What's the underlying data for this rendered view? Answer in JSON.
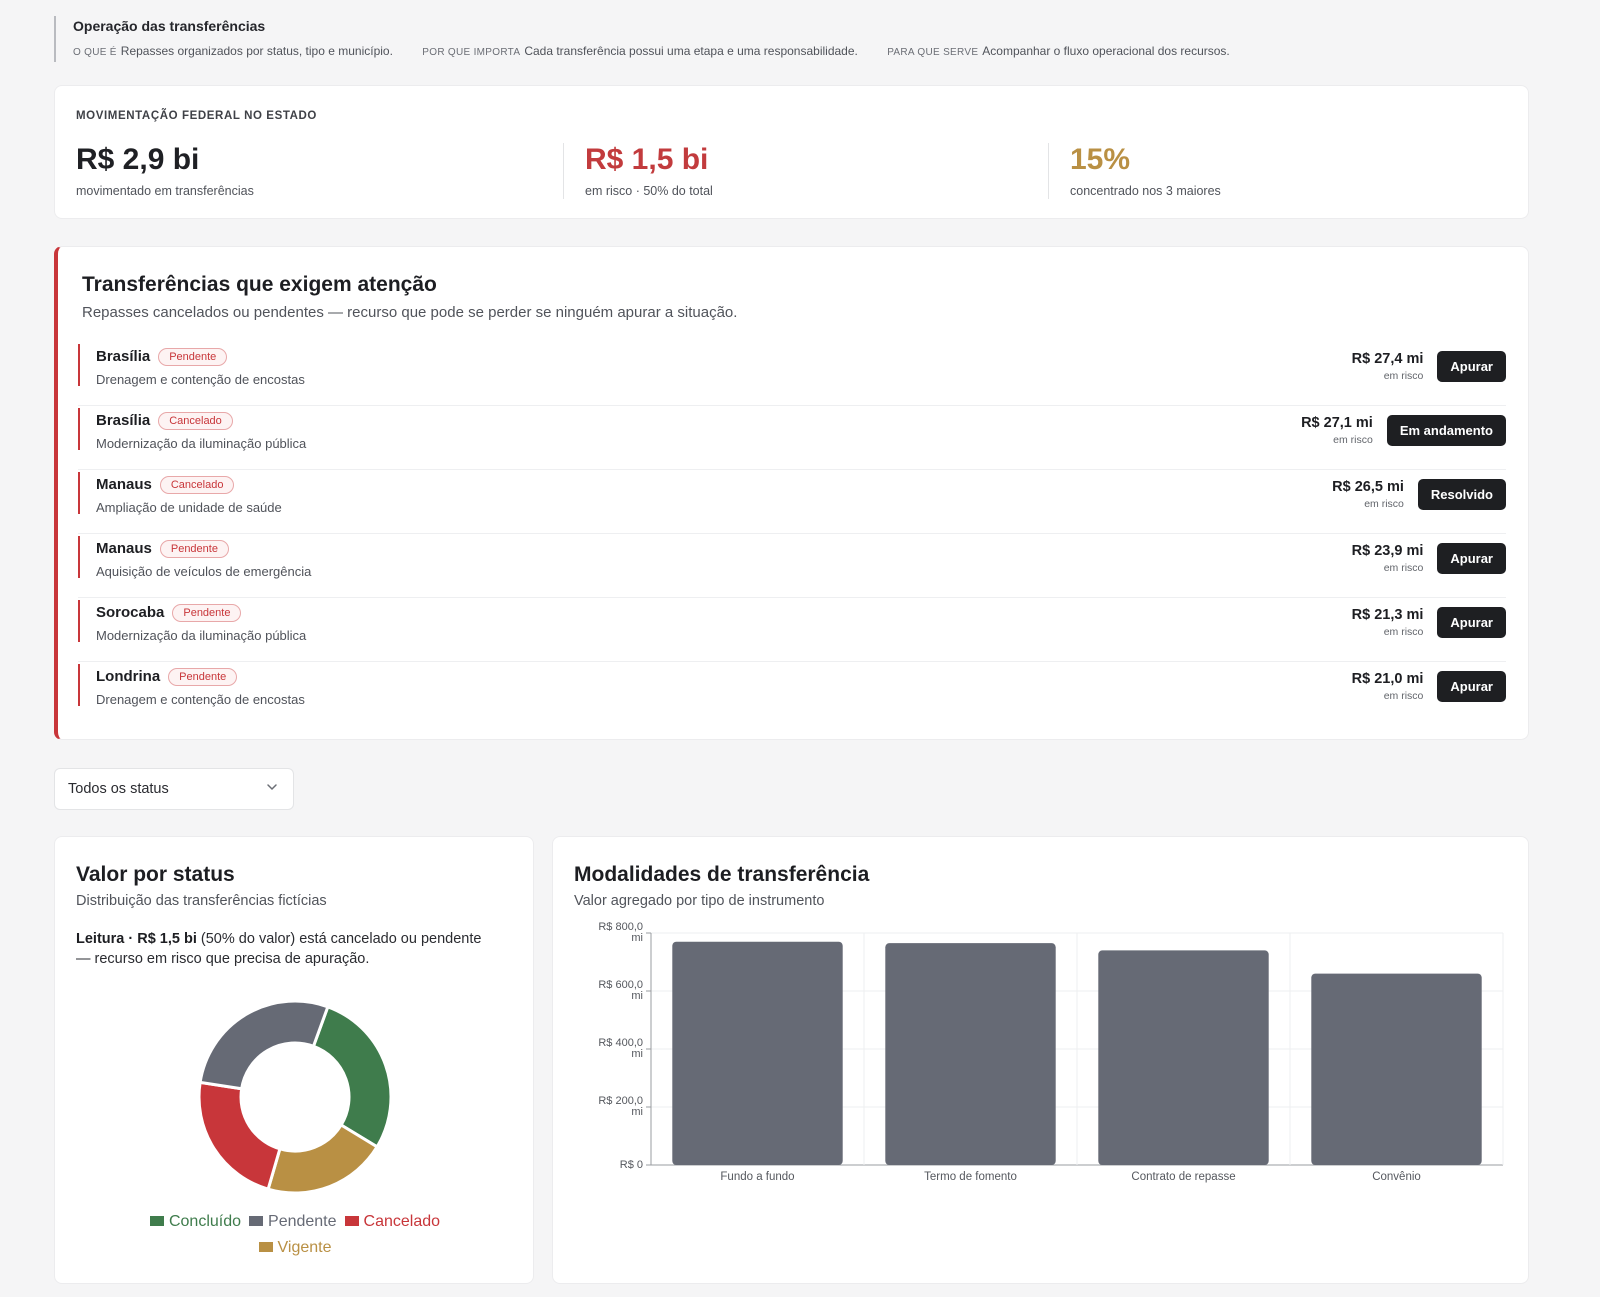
{
  "explainer": {
    "title": "Operação das transferências",
    "what_key": "O QUE É",
    "what_val": "Repasses organizados por status, tipo e município.",
    "why_key": "POR QUE IMPORTA",
    "why_val": "Cada transferência possui uma etapa e uma responsabilidade.",
    "for_key": "PARA QUE SERVE",
    "for_val": "Acompanhar o fluxo operacional dos recursos."
  },
  "kpi": {
    "eyebrow": "MOVIMENTAÇÃO FEDERAL NO ESTADO",
    "items": [
      {
        "value": "R$ 2,9 bi",
        "label": "movimentado em transferências",
        "color": "#1d1e22"
      },
      {
        "value": "R$ 1,5 bi",
        "label": "em risco · 50% do total",
        "color": "#c23b3d"
      },
      {
        "value": "15%",
        "label": "concentrado nos 3 maiores",
        "color": "#b99044"
      }
    ]
  },
  "attention": {
    "title": "Transferências que exigem atenção",
    "description": "Repasses cancelados ou pendentes — recurso que pode se perder se ninguém apurar a situação.",
    "items": [
      {
        "city": "Brasília",
        "status": "Pendente",
        "project": "Drenagem e contenção de encostas",
        "amount": "R$ 27,4 mi",
        "amount_label": "em risco",
        "action": "Apurar"
      },
      {
        "city": "Brasília",
        "status": "Cancelado",
        "project": "Modernização da iluminação pública",
        "amount": "R$ 27,1 mi",
        "amount_label": "em risco",
        "action": "Em andamento"
      },
      {
        "city": "Manaus",
        "status": "Cancelado",
        "project": "Ampliação de unidade de saúde",
        "amount": "R$ 26,5 mi",
        "amount_label": "em risco",
        "action": "Resolvido"
      },
      {
        "city": "Manaus",
        "status": "Pendente",
        "project": "Aquisição de veículos de emergência",
        "amount": "R$ 23,9 mi",
        "amount_label": "em risco",
        "action": "Apurar"
      },
      {
        "city": "Sorocaba",
        "status": "Pendente",
        "project": "Modernização da iluminação pública",
        "amount": "R$ 21,3 mi",
        "amount_label": "em risco",
        "action": "Apurar"
      },
      {
        "city": "Londrina",
        "status": "Pendente",
        "project": "Drenagem e contenção de encostas",
        "amount": "R$ 21,0 mi",
        "amount_label": "em risco",
        "action": "Apurar"
      }
    ]
  },
  "filter": {
    "selected": "Todos os status"
  },
  "status_card": {
    "title": "Valor por status",
    "subtitle": "Distribuição das transferências fictícias",
    "reading_label": "Leitura ·",
    "reading_value": "R$ 1,5 bi",
    "reading_rest": "(50% do valor) está cancelado ou pendente — recurso em risco que precisa de apuração."
  },
  "modal_card": {
    "title": "Modalidades de transferência",
    "subtitle": "Valor agregado por tipo de instrumento"
  },
  "chart_data": [
    {
      "type": "pie",
      "style": "donut",
      "labels": [
        "Concluído",
        "Vigente",
        "Cancelado",
        "Pendente"
      ],
      "values": [
        27,
        20,
        22,
        27
      ],
      "colors": [
        "#3f7c4c",
        "#b99044",
        "#c8363a",
        "#666a75"
      ],
      "legend_order": [
        "Concluído",
        "Pendente",
        "Cancelado",
        "Vigente"
      ],
      "legend": "bottom"
    },
    {
      "type": "bar",
      "categories": [
        "Fundo a fundo",
        "Termo de fomento",
        "Contrato de repasse",
        "Convênio"
      ],
      "values": [
        770,
        765,
        740,
        660
      ],
      "unit": "R$ mi",
      "yticks": [
        "R$ 0",
        "R$ 200,0 mi",
        "R$ 400,0 mi",
        "R$ 600,0 mi",
        "R$ 800,0 mi"
      ],
      "ylim": [
        0,
        800
      ],
      "grid": true,
      "color": "#666a75"
    }
  ]
}
